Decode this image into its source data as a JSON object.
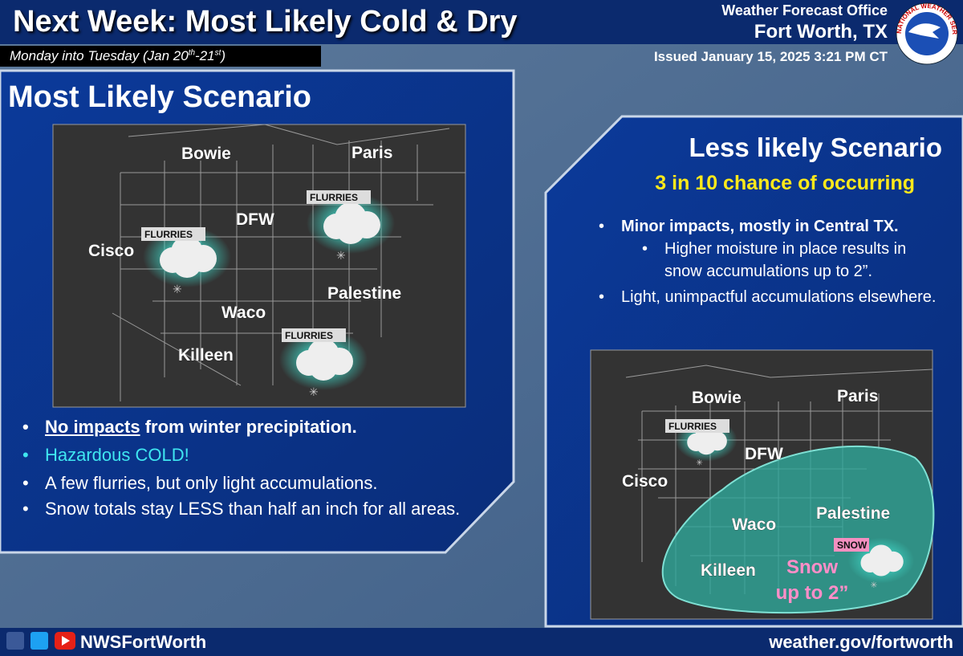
{
  "header": {
    "title": "Next Week: Most Likely Cold & Dry",
    "subtitle": {
      "text": "Monday into Tuesday (Jan 20",
      "sup1": "th",
      "mid": "-21",
      "sup2": "st",
      "end": ")"
    },
    "office": "Weather Forecast Office",
    "location": "Fort Worth, TX",
    "issued": "Issued January 15, 2025 3:21 PM CT"
  },
  "logo": {
    "text": "NATIONAL WEATHER SERVICE"
  },
  "left": {
    "heading": "Most Likely Scenario",
    "map": {
      "cities": [
        "Bowie",
        "Paris",
        "DFW",
        "Cisco",
        "Palestine",
        "Waco",
        "Killeen"
      ],
      "badges": [
        "FLURRIES",
        "FLURRIES",
        "FLURRIES"
      ]
    },
    "bullets": [
      {
        "underlined": "No impacts",
        "rest": " from winter precipitation."
      },
      "Hazardous COLD!",
      "A few flurries, but only light accumulations.",
      "Snow totals stay LESS than half an inch for all areas."
    ]
  },
  "right": {
    "heading": "Less likely Scenario",
    "chance": "3 in 10 chance of occurring",
    "bullets": [
      {
        "bold": "Minor impacts, mostly in Central TX.",
        "sub": "Higher moisture in place results in snow accumulations up to 2”."
      },
      "Light, unimpactful accumulations elsewhere."
    ],
    "map": {
      "cities": [
        "Bowie",
        "Paris",
        "DFW",
        "Cisco",
        "Palestine",
        "Waco",
        "Killeen"
      ],
      "badges": [
        "FLURRIES",
        "SNOW"
      ],
      "snow_label": [
        "Snow",
        "up to 2”"
      ]
    }
  },
  "footer": {
    "handle": "NWSFortWorth",
    "url": "weather.gov/fortworth"
  }
}
